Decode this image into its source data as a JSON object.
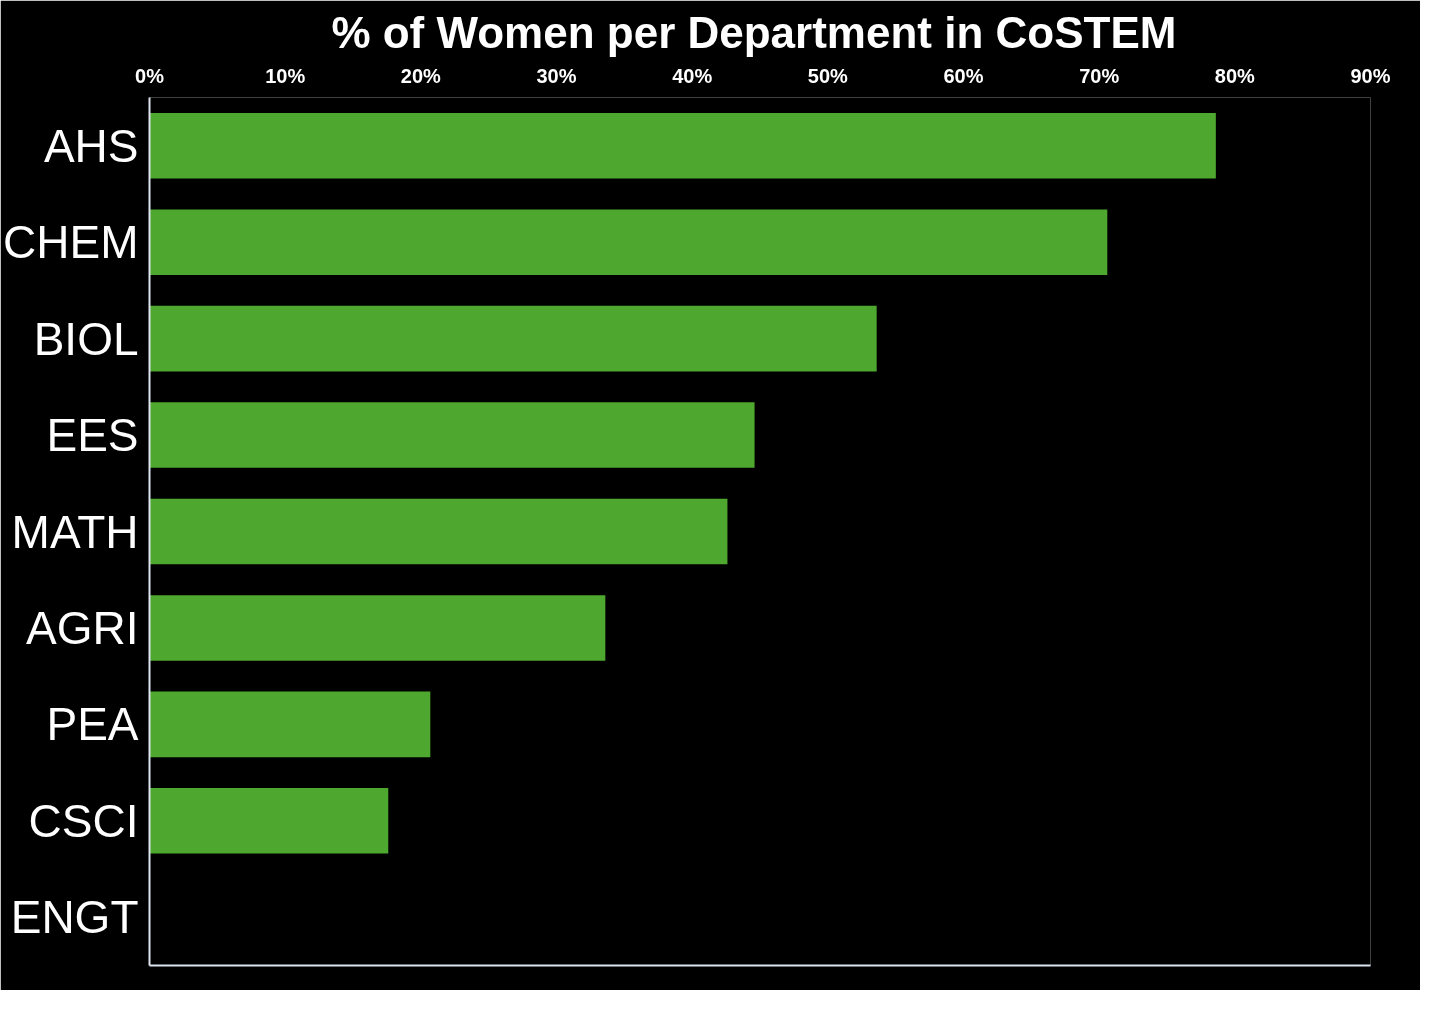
{
  "chart_data": {
    "type": "bar",
    "orientation": "horizontal",
    "title": "%  of Women per Department in CoSTEM",
    "categories": [
      "AHS",
      "CHEM",
      "BIOL",
      "EES",
      "MATH",
      "AGRI",
      "PEA",
      "CSCI",
      "ENGT"
    ],
    "values": [
      78.6,
      70.6,
      53.6,
      44.6,
      42.6,
      33.6,
      20.7,
      17.6,
      0
    ],
    "color": "#4ea72e",
    "xlim": [
      0,
      90
    ],
    "xticks": [
      {
        "value": 0,
        "label": "0%"
      },
      {
        "value": 10,
        "label": "10%"
      },
      {
        "value": 20,
        "label": "20%"
      },
      {
        "value": 30,
        "label": "30%"
      },
      {
        "value": 40,
        "label": "40%"
      },
      {
        "value": 50,
        "label": "50%"
      },
      {
        "value": 60,
        "label": "60%"
      },
      {
        "value": 70,
        "label": "70%"
      },
      {
        "value": 80,
        "label": "80%"
      },
      {
        "value": 90,
        "label": "90%"
      }
    ],
    "grid": false
  }
}
